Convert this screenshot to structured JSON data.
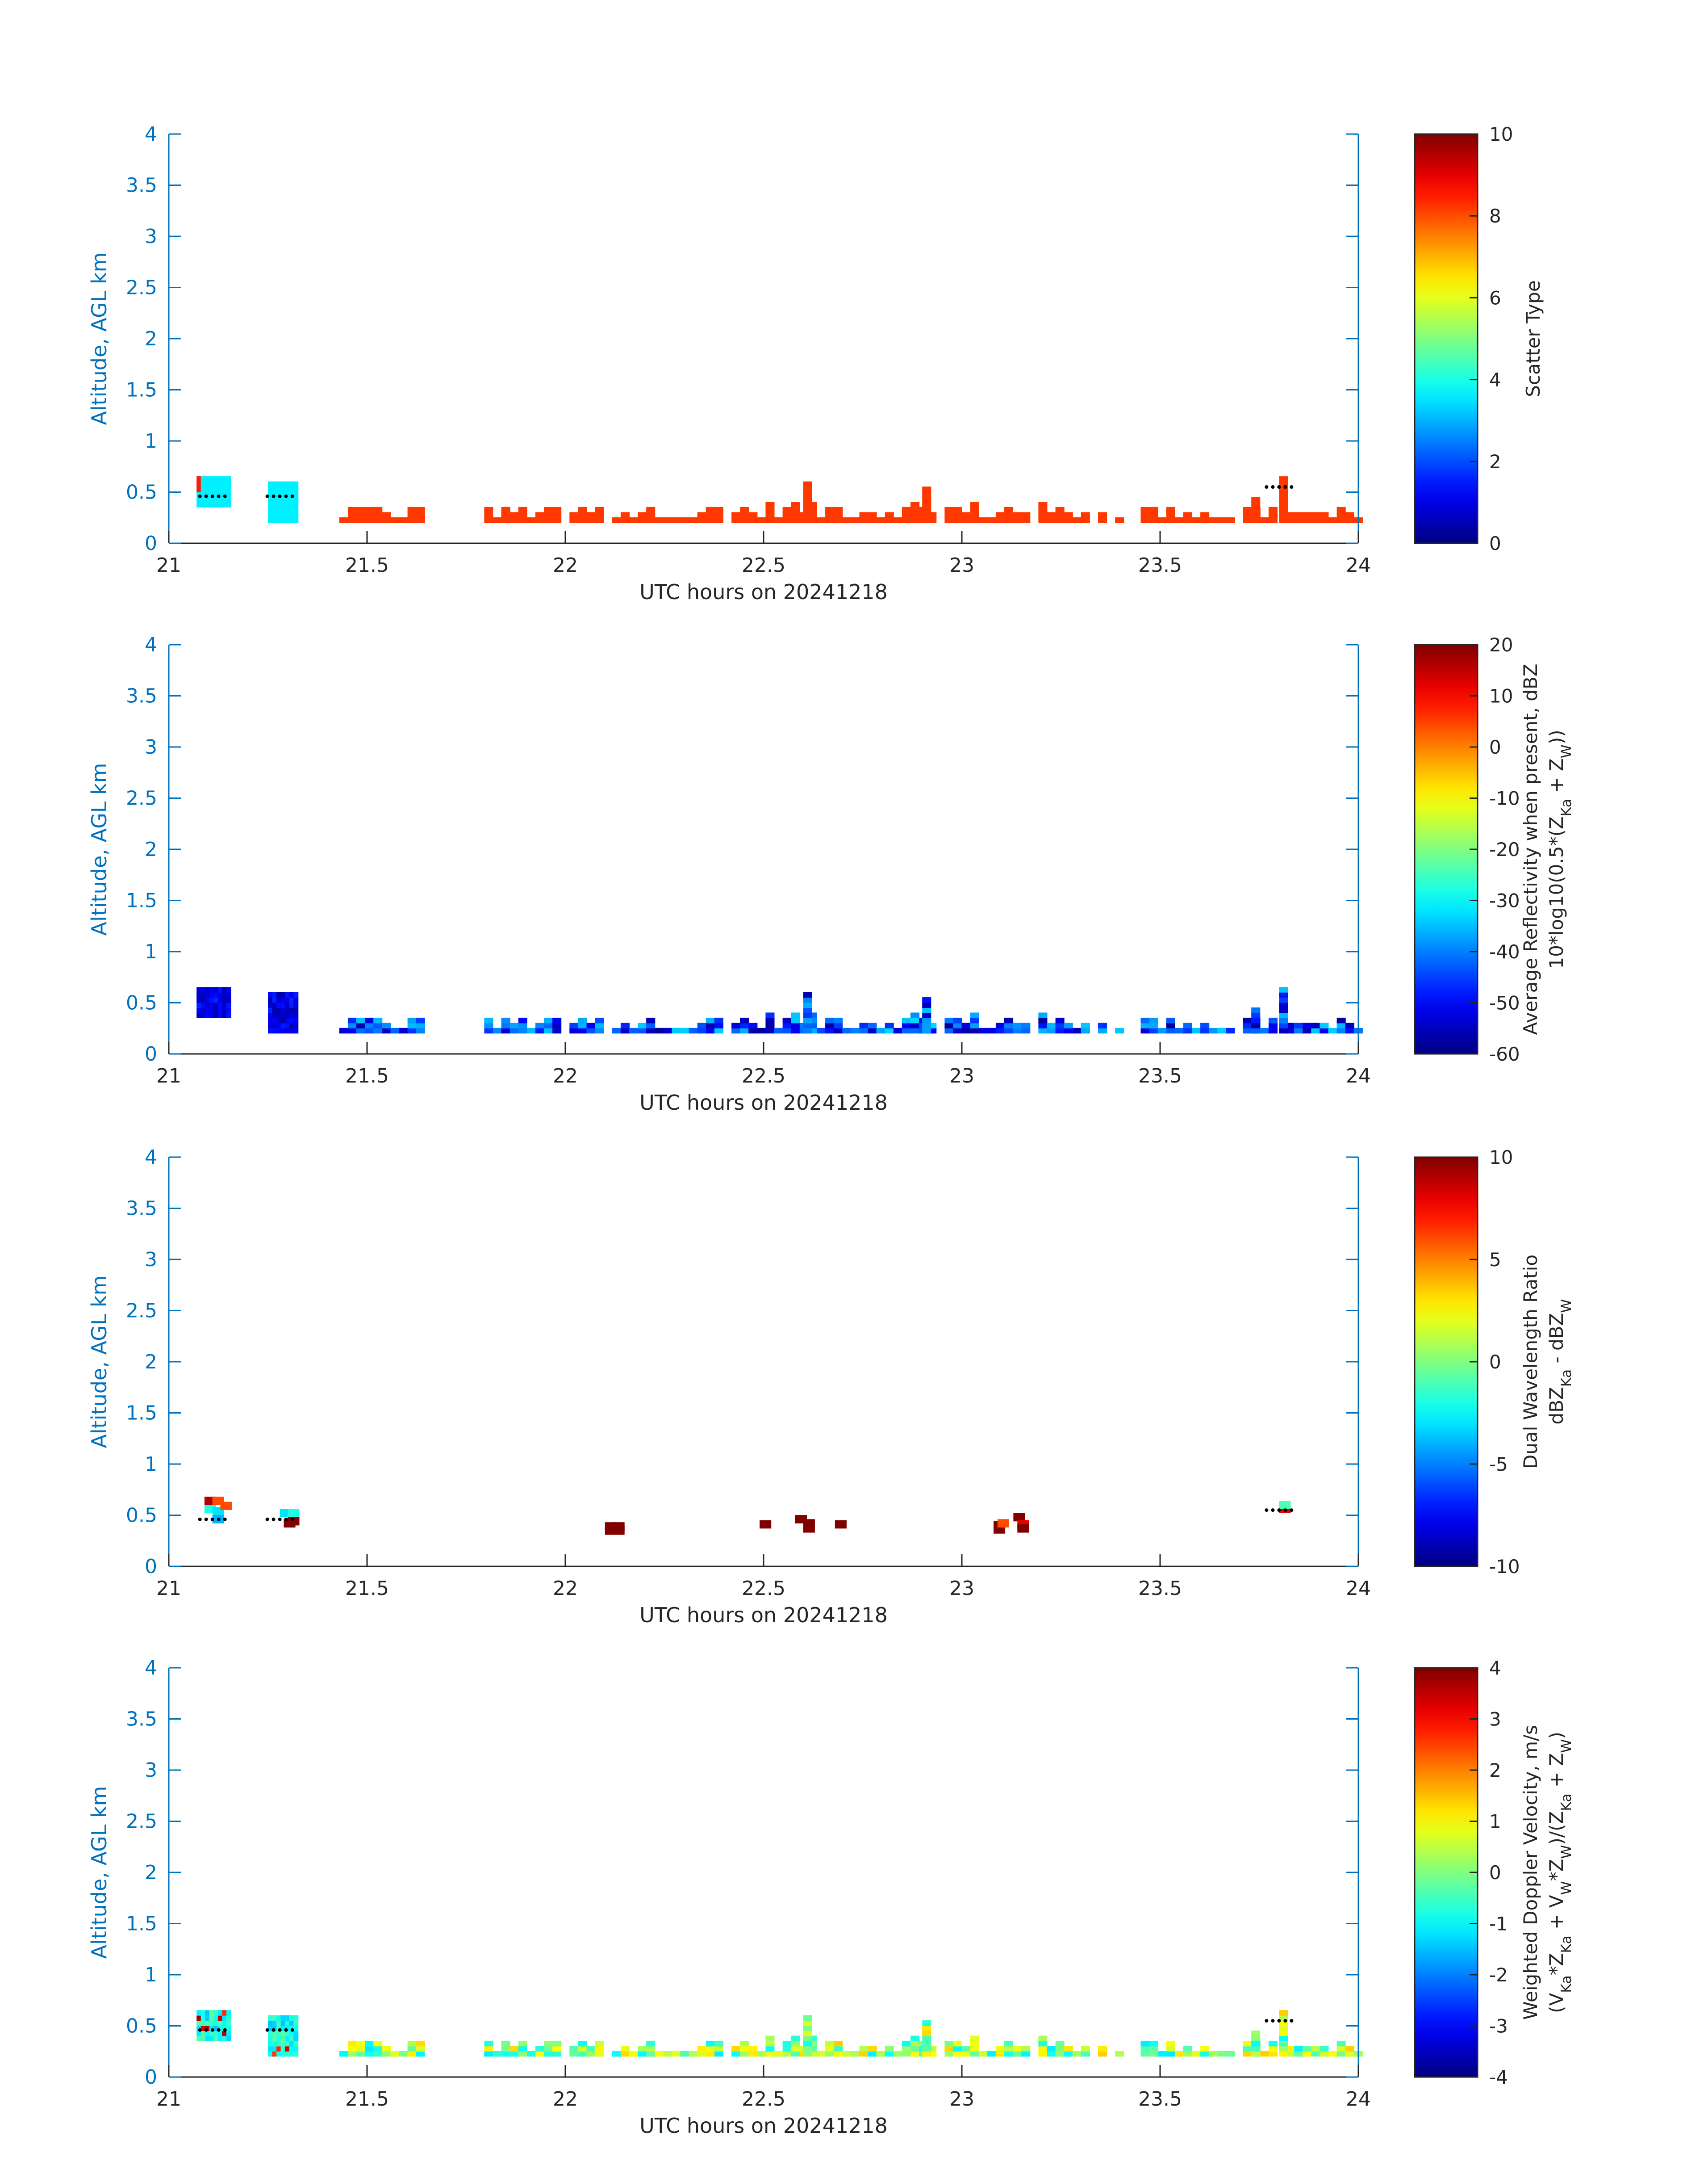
{
  "chart_data": [
    {
      "type": "heatmap",
      "xlabel": "UTC hours on 20241218",
      "ylabel": "Altitude, AGL km",
      "xlim": [
        21,
        24
      ],
      "ylim": [
        0,
        4
      ],
      "xticks": [
        "21",
        "21.5",
        "22",
        "22.5",
        "23",
        "23.5",
        "24"
      ],
      "yticks": [
        "0",
        "0.5",
        "1",
        "1.5",
        "2",
        "2.5",
        "3",
        "3.5",
        "4"
      ],
      "colorbar": {
        "label_lines": [
          "Scatter Type"
        ],
        "ticks": [
          "0",
          "2",
          "4",
          "6",
          "8",
          "10"
        ],
        "range": [
          0,
          10
        ]
      },
      "colormap": "jet",
      "mode": "scatter_type",
      "cloud_base_dots": [
        [
          21.11,
          0.46
        ],
        [
          21.28,
          0.46
        ],
        [
          23.8,
          0.55
        ]
      ]
    },
    {
      "type": "heatmap",
      "xlabel": "UTC hours on 20241218",
      "ylabel": "Altitude, AGL km",
      "xlim": [
        21,
        24
      ],
      "ylim": [
        0,
        4
      ],
      "xticks": [
        "21",
        "21.5",
        "22",
        "22.5",
        "23",
        "23.5",
        "24"
      ],
      "yticks": [
        "0",
        "0.5",
        "1",
        "1.5",
        "2",
        "2.5",
        "3",
        "3.5",
        "4"
      ],
      "colorbar": {
        "label_lines": [
          "Average Reflectivity when present, dBZ",
          "10*log10(0.5*(Z_{Ka} + Z_{W}))"
        ],
        "ticks": [
          "-60",
          "-50",
          "-40",
          "-30",
          "-20",
          "-10",
          "0",
          "10",
          "20"
        ],
        "range": [
          -60,
          20
        ]
      },
      "colormap": "jet",
      "mode": "reflectivity"
    },
    {
      "type": "heatmap",
      "xlabel": "UTC hours on 20241218",
      "ylabel": "Altitude, AGL km",
      "xlim": [
        21,
        24
      ],
      "ylim": [
        0,
        4
      ],
      "xticks": [
        "21",
        "21.5",
        "22",
        "22.5",
        "23",
        "23.5",
        "24"
      ],
      "yticks": [
        "0",
        "0.5",
        "1",
        "1.5",
        "2",
        "2.5",
        "3",
        "3.5",
        "4"
      ],
      "colorbar": {
        "label_lines": [
          "Dual Wavelength Ratio",
          "dBZ_{Ka} - dBZ_{W}"
        ],
        "ticks": [
          "-10",
          "-5",
          "0",
          "5",
          "10"
        ],
        "range": [
          -10,
          10
        ]
      },
      "colormap": "jet",
      "mode": "dwr",
      "cells": [
        [
          21.09,
          0.6,
          9
        ],
        [
          21.11,
          0.6,
          6
        ],
        [
          21.09,
          0.52,
          -2
        ],
        [
          21.11,
          0.5,
          -3
        ],
        [
          21.13,
          0.55,
          6
        ],
        [
          21.11,
          0.42,
          -4
        ],
        [
          21.28,
          0.48,
          -3
        ],
        [
          21.3,
          0.48,
          -2
        ],
        [
          21.29,
          0.38,
          10
        ],
        [
          21.3,
          0.4,
          10
        ],
        [
          22.1,
          0.35,
          10
        ],
        [
          22.12,
          0.35,
          10
        ],
        [
          22.1,
          0.31,
          10
        ],
        [
          22.12,
          0.31,
          10
        ],
        [
          22.49,
          0.37,
          10
        ],
        [
          22.58,
          0.42,
          10
        ],
        [
          22.6,
          0.38,
          10
        ],
        [
          22.6,
          0.33,
          10
        ],
        [
          22.68,
          0.37,
          10
        ],
        [
          23.08,
          0.36,
          10
        ],
        [
          23.08,
          0.32,
          10
        ],
        [
          23.09,
          0.38,
          6
        ],
        [
          23.13,
          0.44,
          10
        ],
        [
          23.14,
          0.37,
          8
        ],
        [
          23.14,
          0.33,
          10
        ],
        [
          23.8,
          0.52,
          8
        ],
        [
          23.8,
          0.56,
          -1
        ]
      ],
      "cloud_base_dots": [
        [
          21.11,
          0.46
        ],
        [
          21.28,
          0.46
        ],
        [
          23.8,
          0.55
        ]
      ]
    },
    {
      "type": "heatmap",
      "xlabel": "UTC hours on 20241218",
      "ylabel": "Altitude, AGL km",
      "xlim": [
        21,
        24
      ],
      "ylim": [
        0,
        4
      ],
      "xticks": [
        "21",
        "21.5",
        "22",
        "22.5",
        "23",
        "23.5",
        "24"
      ],
      "yticks": [
        "0",
        "0.5",
        "1",
        "1.5",
        "2",
        "2.5",
        "3",
        "3.5",
        "4"
      ],
      "colorbar": {
        "label_lines": [
          "Weighted Doppler Velocity, m/s",
          "(V_{Ka}*Z_{Ka} + V_{W}*Z_{W})/(Z_{Ka} + Z_{W})"
        ],
        "ticks": [
          "-4",
          "-3",
          "-2",
          "-1",
          "0",
          "1",
          "2",
          "3",
          "4"
        ],
        "range": [
          -4,
          4
        ]
      },
      "colormap": "jet",
      "mode": "velocity",
      "cloud_base_dots": [
        [
          21.11,
          0.46
        ],
        [
          21.28,
          0.46
        ],
        [
          23.8,
          0.55
        ]
      ]
    }
  ]
}
